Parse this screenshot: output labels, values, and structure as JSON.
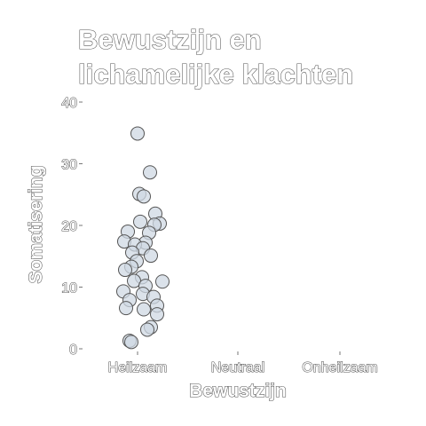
{
  "chart_data": {
    "type": "scatter",
    "title_lines": [
      "Bewustzijn en",
      "lichamelijke klachten"
    ],
    "xlabel": "Bewustzijn",
    "ylabel": "Somatisering",
    "categories": [
      "Heilzaam",
      "Neutraal",
      "Onheilzaam"
    ],
    "y_ticks": [
      0,
      10,
      20,
      30,
      40
    ],
    "ylim": [
      0,
      40
    ],
    "grid": false,
    "colors": {
      "point_fill": "#cfd8e3",
      "point_stroke": "#555555",
      "text_stroke": "#555555"
    },
    "series": [
      {
        "points": [
          {
            "x": "Heilzaam",
            "y": 34.9
          },
          {
            "x": "Heilzaam",
            "y": 28.6
          },
          {
            "x": "Heilzaam",
            "y": 25.1
          },
          {
            "x": "Heilzaam",
            "y": 24.7
          },
          {
            "x": "Heilzaam",
            "y": 21.9
          },
          {
            "x": "Heilzaam",
            "y": 20.6
          },
          {
            "x": "Heilzaam",
            "y": 20.3
          },
          {
            "x": "Heilzaam",
            "y": 20.1
          },
          {
            "x": "Heilzaam",
            "y": 19.0
          },
          {
            "x": "Heilzaam",
            "y": 18.8
          },
          {
            "x": "Heilzaam",
            "y": 17.4
          },
          {
            "x": "Heilzaam",
            "y": 17.2
          },
          {
            "x": "Heilzaam",
            "y": 16.9
          },
          {
            "x": "Heilzaam",
            "y": 16.3
          },
          {
            "x": "Heilzaam",
            "y": 15.6
          },
          {
            "x": "Heilzaam",
            "y": 15.1
          },
          {
            "x": "Heilzaam",
            "y": 14.2
          },
          {
            "x": "Heilzaam",
            "y": 13.3
          },
          {
            "x": "Heilzaam",
            "y": 12.8
          },
          {
            "x": "Heilzaam",
            "y": 11.6
          },
          {
            "x": "Heilzaam",
            "y": 11.0
          },
          {
            "x": "Heilzaam",
            "y": 10.9
          },
          {
            "x": "Heilzaam",
            "y": 10.2
          },
          {
            "x": "Heilzaam",
            "y": 9.3
          },
          {
            "x": "Heilzaam",
            "y": 8.9
          },
          {
            "x": "Heilzaam",
            "y": 8.4
          },
          {
            "x": "Heilzaam",
            "y": 7.9
          },
          {
            "x": "Heilzaam",
            "y": 7.0
          },
          {
            "x": "Heilzaam",
            "y": 6.6
          },
          {
            "x": "Heilzaam",
            "y": 6.4
          },
          {
            "x": "Heilzaam",
            "y": 5.6
          },
          {
            "x": "Heilzaam",
            "y": 3.5
          },
          {
            "x": "Heilzaam",
            "y": 3.1
          },
          {
            "x": "Heilzaam",
            "y": 1.3
          },
          {
            "x": "Heilzaam",
            "y": 1.1
          }
        ]
      }
    ]
  }
}
